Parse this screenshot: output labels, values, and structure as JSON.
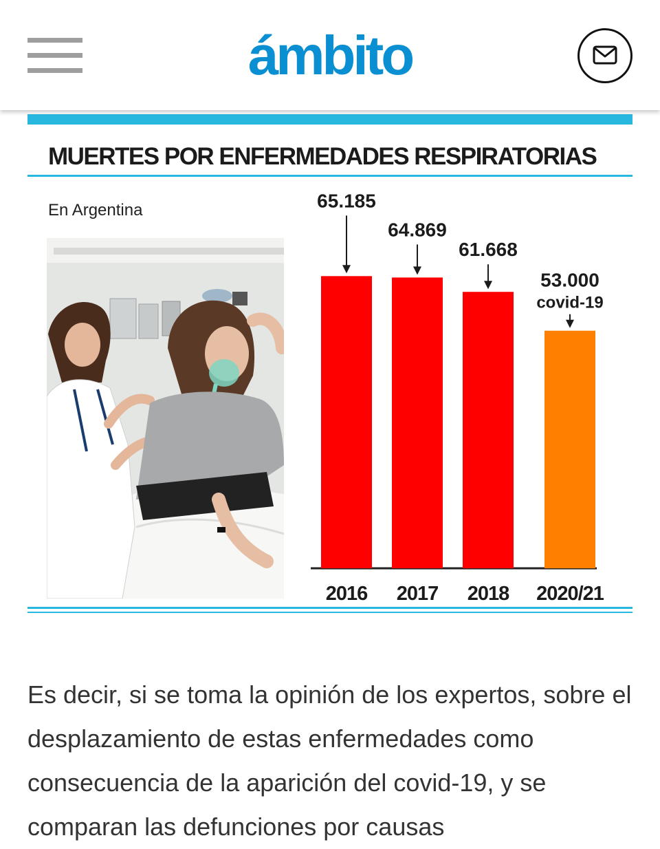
{
  "header": {
    "logo_text": "ámbito",
    "brand_color": "#0a8fd2",
    "menu_icon": "hamburger-menu-icon",
    "mail_icon": "envelope-icon"
  },
  "infographic": {
    "title": "MUERTES POR ENFERMEDADES RESPIRATORIAS",
    "subtitle": "En Argentina",
    "accent_color": "#27b7df"
  },
  "chart_data": {
    "type": "bar",
    "title": "MUERTES POR ENFERMEDADES RESPIRATORIAS",
    "subtitle": "En Argentina",
    "categories": [
      "2016",
      "2017",
      "2018",
      "2020/21"
    ],
    "values": [
      65185,
      64869,
      61668,
      53000
    ],
    "value_labels": [
      "65.185",
      "64.869",
      "61.668",
      "53.000"
    ],
    "annotations": [
      "",
      "",
      "",
      "covid-19"
    ],
    "colors": [
      "#ff0000",
      "#ff0000",
      "#ff0000",
      "#ff8000"
    ],
    "ylim": [
      0,
      66000
    ],
    "grid": false,
    "xlabel": "",
    "ylabel": ""
  },
  "article": {
    "text": "Es decir, si se toma la opinión de los expertos, sobre el desplazamiento de estas enfermedades como consecuencia de la aparición del covid-19, y se comparan las defunciones por causas"
  }
}
